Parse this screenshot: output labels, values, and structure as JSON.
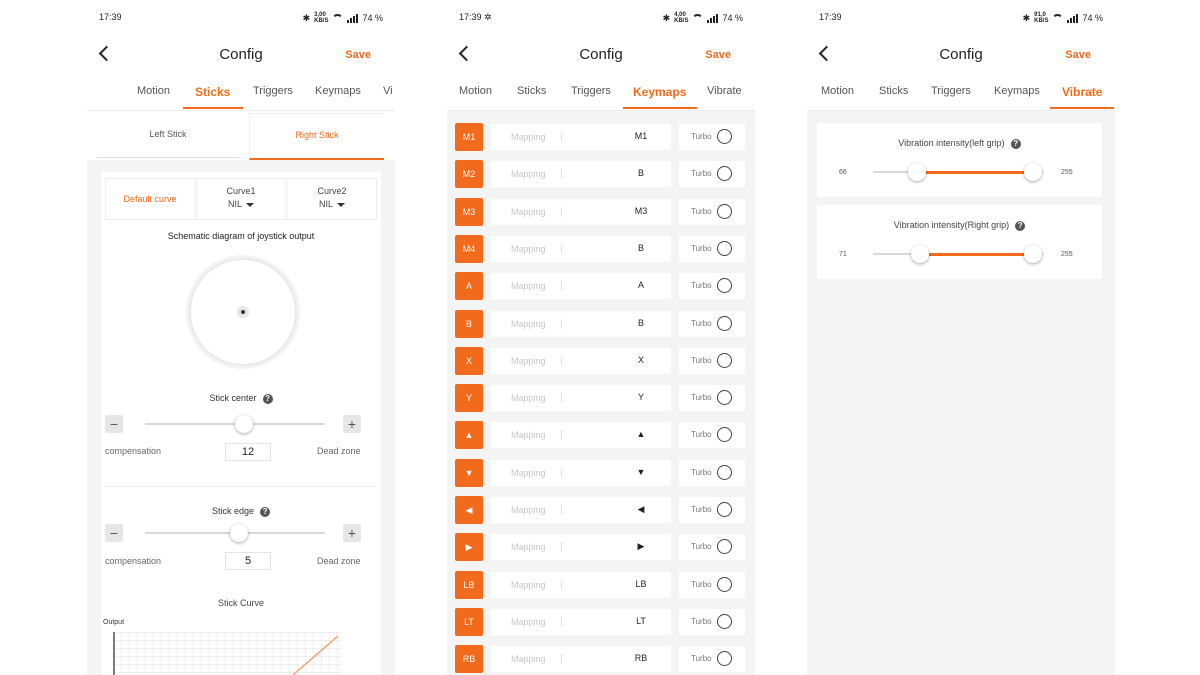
{
  "common": {
    "title": "Config",
    "save": "Save",
    "battery": "74 %"
  },
  "screens": [
    {
      "time": "17:39",
      "net": "3,00\nKB/S"
    },
    {
      "time": "17:39",
      "net": "4,00\nKB/S"
    },
    {
      "time": "17:39",
      "net": "91,0\nKB/S"
    }
  ],
  "tabs_a": [
    "Motion",
    "Sticks",
    "Triggers",
    "Keymaps",
    "Vi"
  ],
  "tabs_bc": [
    "Motion",
    "Sticks",
    "Triggers",
    "Keymaps",
    "Vibrate"
  ],
  "sticks": {
    "subtabs": [
      "Left Stick",
      "Right Stick"
    ],
    "curves": {
      "default": "Default curve",
      "curve1": "Curve1",
      "curve2": "Curve2",
      "nil1": "NIL",
      "nil2": "NIL"
    },
    "diagram_title": "Schematic diagram of joystick output",
    "center": {
      "title": "Stick center",
      "left": "compensation",
      "right": "Dead zone",
      "value": "12",
      "fraction": 0.55
    },
    "edge": {
      "title": "Stick edge",
      "left": "compensation",
      "right": "Dead zone",
      "value": "5",
      "fraction": 0.52
    },
    "curve_title": "Stick Curve",
    "curve_axis": "Output"
  },
  "keymaps": {
    "placeholder": "Mapping",
    "turbo": "Turbo",
    "rows": [
      {
        "key": "M1",
        "value": "M1",
        "accent": false
      },
      {
        "key": "M2",
        "value": "B",
        "accent": true
      },
      {
        "key": "M3",
        "value": "M3",
        "accent": false
      },
      {
        "key": "M4",
        "value": "B",
        "accent": true
      },
      {
        "key": "A",
        "value": "A",
        "accent": false
      },
      {
        "key": "B",
        "value": "B",
        "accent": false
      },
      {
        "key": "X",
        "value": "X",
        "accent": false
      },
      {
        "key": "Y",
        "value": "Y",
        "accent": false
      },
      {
        "key": "▲",
        "value": "▲",
        "accent": false
      },
      {
        "key": "▼",
        "value": "▼",
        "accent": false
      },
      {
        "key": "◀",
        "value": "◀",
        "accent": false
      },
      {
        "key": "▶",
        "value": "▶",
        "accent": false
      },
      {
        "key": "LB",
        "value": "LB",
        "accent": false
      },
      {
        "key": "LT",
        "value": "LT",
        "accent": false
      },
      {
        "key": "RB",
        "value": "RB",
        "accent": false
      }
    ]
  },
  "vibrate": {
    "left": {
      "title": "Vibration intensity(left grip)",
      "min": "66",
      "max": "255",
      "value": 66,
      "range": [
        0,
        255
      ]
    },
    "right": {
      "title": "Vibration intensity(Right grip)",
      "min": "71",
      "max": "255",
      "value": 71,
      "range": [
        0,
        255
      ]
    }
  },
  "colors": {
    "accent": "#f26a1b"
  }
}
